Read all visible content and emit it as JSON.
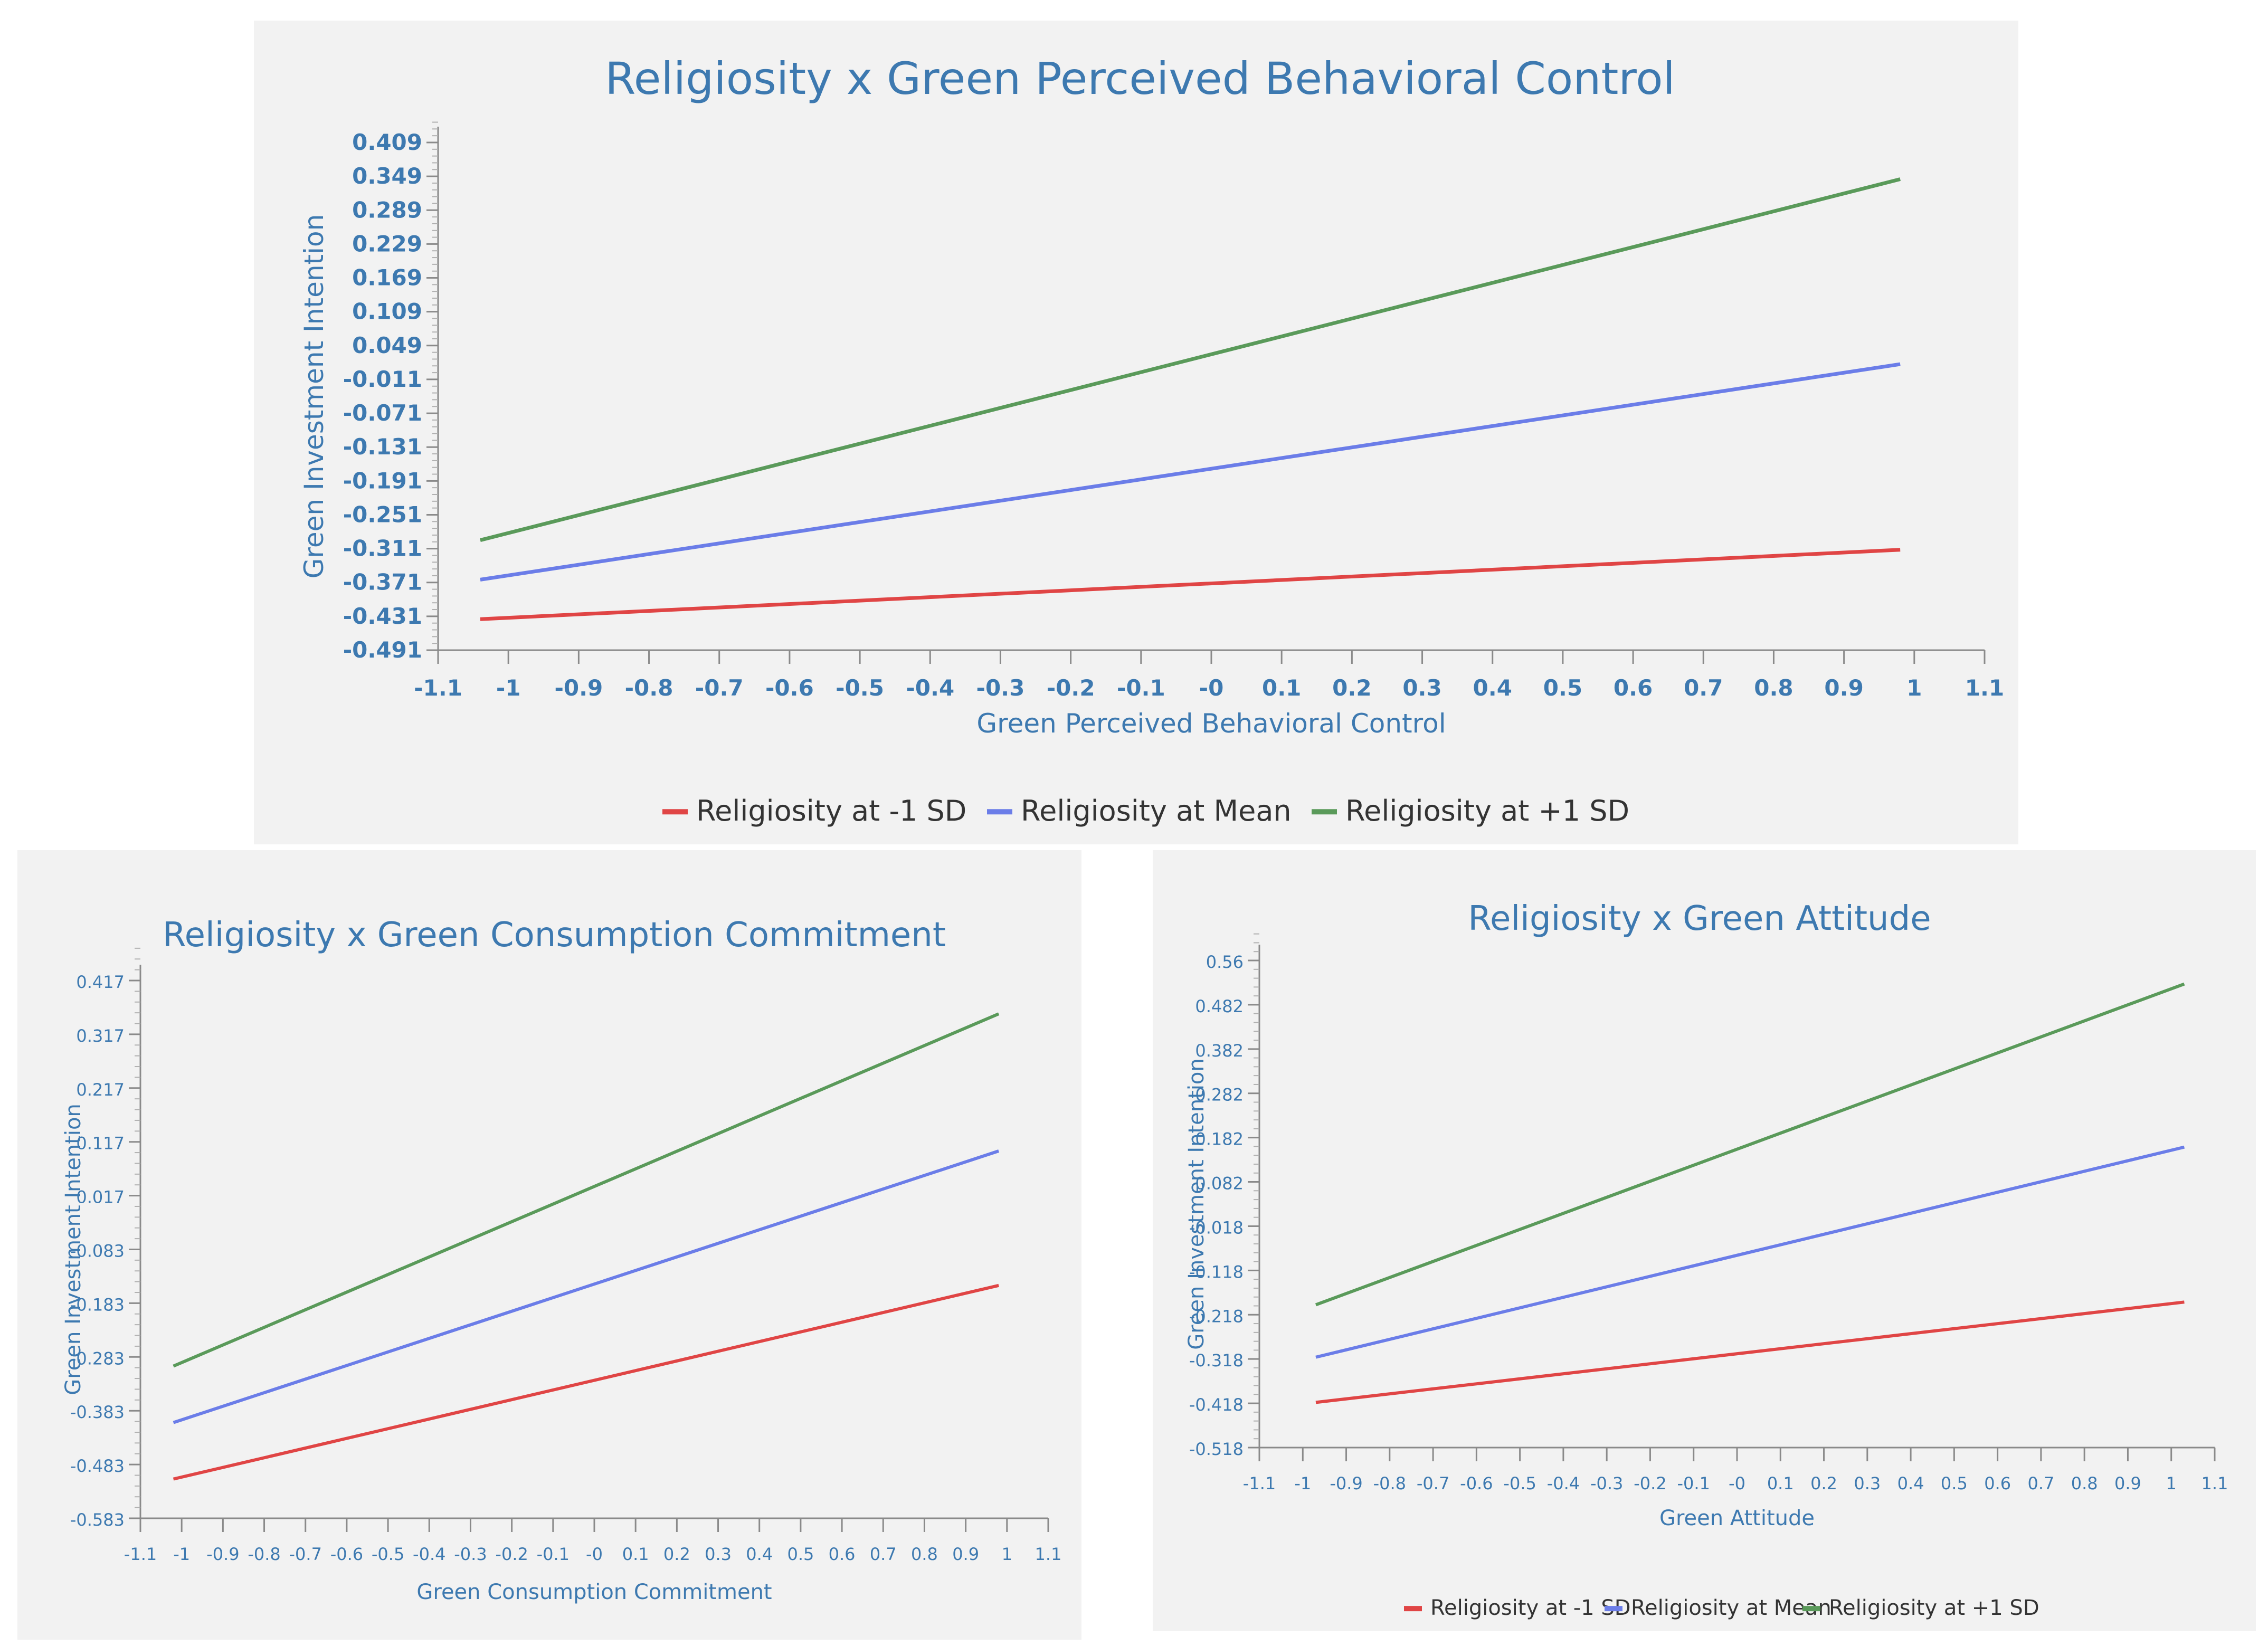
{
  "chart_data": [
    {
      "type": "line",
      "title": "Religiosity x Green Perceived Behavioral Control",
      "xlabel": "Green Perceived Behavioral Control",
      "ylabel": "Green Investment Intention",
      "xlim": [
        -1.1,
        1.1
      ],
      "ylim": [
        -0.491,
        0.409
      ],
      "xticks": [
        "-1.1",
        "-1",
        "-0.9",
        "-0.8",
        "-0.7",
        "-0.6",
        "-0.5",
        "-0.4",
        "-0.3",
        "-0.2",
        "-0.1",
        "-0",
        "0.1",
        "0.2",
        "0.3",
        "0.4",
        "0.5",
        "0.6",
        "0.7",
        "0.8",
        "0.9",
        "1",
        "1.1"
      ],
      "yticks": [
        "0.409",
        "0.349",
        "0.289",
        "0.229",
        "0.169",
        "0.109",
        "0.049",
        "-0.011",
        "-0.071",
        "-0.131",
        "-0.191",
        "-0.251",
        "-0.311",
        "-0.371",
        "-0.431",
        "-0.491"
      ],
      "legend_position": "bottom",
      "series": [
        {
          "name": "Religiosity at -1 SD",
          "color": "#e04545",
          "x": [
            -1.04,
            0.98
          ],
          "y": [
            -0.436,
            -0.313
          ]
        },
        {
          "name": "Religiosity at Mean",
          "color": "#6b7de8",
          "x": [
            -1.04,
            0.98
          ],
          "y": [
            -0.366,
            0.016
          ]
        },
        {
          "name": "Religiosity at +1 SD",
          "color": "#5a9a5a",
          "x": [
            -1.04,
            0.98
          ],
          "y": [
            -0.296,
            0.344
          ]
        }
      ]
    },
    {
      "type": "line",
      "title": "Religiosity x Green Consumption Commitment",
      "xlabel": "Green Consumption Commitment",
      "ylabel": "Green Investment Intention",
      "xlim": [
        -1.1,
        1.1
      ],
      "ylim": [
        -0.583,
        0.417
      ],
      "xticks": [
        "-1.1",
        "-1",
        "-0.9",
        "-0.8",
        "-0.7",
        "-0.6",
        "-0.5",
        "-0.4",
        "-0.3",
        "-0.2",
        "-0.1",
        "-0",
        "0.1",
        "0.2",
        "0.3",
        "0.4",
        "0.5",
        "0.6",
        "0.7",
        "0.8",
        "0.9",
        "1",
        "1.1"
      ],
      "yticks": [
        "0.417",
        "0.317",
        "0.217",
        "0.117",
        "0.017",
        "-0.083",
        "-0.183",
        "-0.283",
        "-0.383",
        "-0.483",
        "-0.583"
      ],
      "legend_position": "none",
      "series": [
        {
          "name": "Religiosity at -1 SD",
          "color": "#e04545",
          "x": [
            -1.02,
            0.98
          ],
          "y": [
            -0.51,
            -0.15
          ]
        },
        {
          "name": "Religiosity at Mean",
          "color": "#6b7de8",
          "x": [
            -1.02,
            0.98
          ],
          "y": [
            -0.405,
            0.1
          ]
        },
        {
          "name": "Religiosity at +1 SD",
          "color": "#5a9a5a",
          "x": [
            -1.02,
            0.98
          ],
          "y": [
            -0.3,
            0.355
          ]
        }
      ]
    },
    {
      "type": "line",
      "title": "Religiosity x Green Attitude",
      "xlabel": "Green Attitude",
      "ylabel": "Green Investment Intention",
      "xlim": [
        -1.1,
        1.1
      ],
      "ylim": [
        -0.518,
        0.56
      ],
      "xticks": [
        "-1.1",
        "-1",
        "-0.9",
        "-0.8",
        "-0.7",
        "-0.6",
        "-0.5",
        "-0.4",
        "-0.3",
        "-0.2",
        "-0.1",
        "-0",
        "0.1",
        "0.2",
        "0.3",
        "0.4",
        "0.5",
        "0.6",
        "0.7",
        "0.8",
        "0.9",
        "1",
        "1.1"
      ],
      "yticks": [
        "0.56",
        "0.482",
        "0.382",
        "0.282",
        "0.182",
        "0.082",
        "-0.018",
        "-0.118",
        "-0.218",
        "-0.318",
        "-0.418",
        "-0.518"
      ],
      "legend_position": "bottom",
      "series": [
        {
          "name": "Religiosity at -1 SD",
          "color": "#e04545",
          "x": [
            -0.97,
            1.03
          ],
          "y": [
            -0.418,
            -0.196
          ]
        },
        {
          "name": "Religiosity at Mean",
          "color": "#6b7de8",
          "x": [
            -0.97,
            1.03
          ],
          "y": [
            -0.318,
            0.147
          ]
        },
        {
          "name": "Religiosity at +1 SD",
          "color": "#5a9a5a",
          "x": [
            -0.97,
            1.03
          ],
          "y": [
            -0.202,
            0.508
          ]
        }
      ]
    }
  ]
}
